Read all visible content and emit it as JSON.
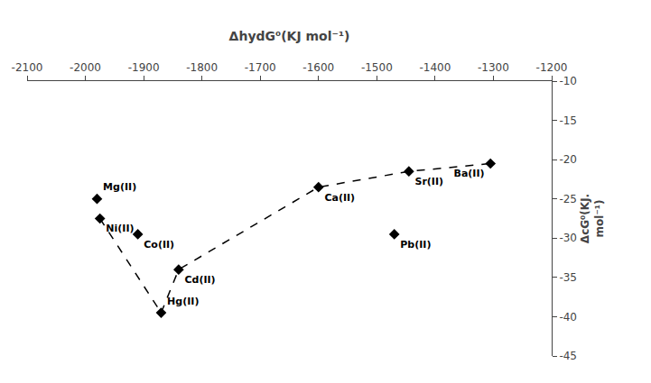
{
  "chart_data": {
    "type": "scatter",
    "x_label": "ΔhydG⁰(KJ mol⁻¹)",
    "y_label": "ΔcG⁰(KJ.\nmol⁻¹)",
    "series": [
      {
        "type": "line",
        "line_style": "dashed",
        "color": "black",
        "x": [
          -1975,
          -1870
        ],
        "values": [
          -27.5,
          -39.5
        ]
      },
      {
        "type": "line",
        "line_style": "dashed",
        "color": "black",
        "x": [
          -1870,
          -1840,
          -1600,
          -1445,
          -1305
        ],
        "values": [
          -39.5,
          -34.0,
          -23.5,
          -21.5,
          -20.5
        ]
      },
      {
        "type": "scatter",
        "marker": "diamond",
        "color": "black",
        "x": [
          -1980,
          -1975,
          -1910,
          -1840,
          -1870,
          -1600,
          -1470,
          -1445,
          -1305
        ],
        "values": [
          -25.0,
          -27.5,
          -29.5,
          -34.0,
          -39.5,
          -23.5,
          -29.5,
          -21.5,
          -20.5
        ],
        "labels": [
          "Mg(II)",
          "Ni(II)",
          "Co(II)",
          "Cd(II)",
          "Hg(II)",
          "Ca(II)",
          "Pb(II)",
          "Sr(II)",
          "Ba(II)"
        ]
      }
    ],
    "xlim": [
      -2100,
      -1200
    ],
    "ylim": [
      -45,
      -10
    ],
    "xticks": [
      -2100,
      -2000,
      -1900,
      -1800,
      -1700,
      -1600,
      -1500,
      -1400,
      -1300,
      -1200
    ],
    "yticks": [
      -45,
      -40,
      -35,
      -30,
      -25,
      -20,
      -15,
      -10
    ],
    "grid": false
  }
}
